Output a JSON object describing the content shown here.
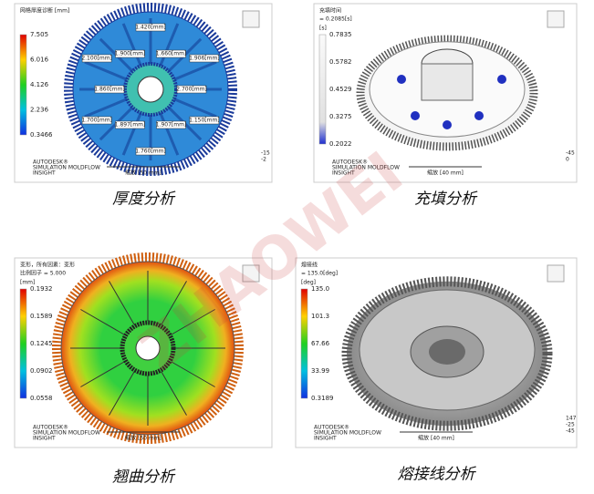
{
  "watermark": "ZHAOWEI",
  "panels": [
    {
      "title": [
        "网格厚度诊断 [mm]"
      ],
      "legend": {
        "unit": "",
        "values": [
          "7.505",
          "6.016",
          "4.126",
          "2.236",
          "0.3466"
        ]
      },
      "labels": [
        "1.420[mm]",
        "1.660[mm]",
        "1.906[mm]",
        "2.700[mm]",
        "1.150[mm]",
        "1.907[mm]",
        "1.760[mm]",
        "1.897[mm]",
        "1.700[mm]",
        "1.860[mm]",
        "2.100[mm]",
        "1.900[mm]"
      ],
      "brand": [
        "AUTODESK®",
        "SIMULATION MOLDFLOW",
        "INSIGHT"
      ],
      "scale": "缩放 [50 mm]",
      "triad": [
        "-15",
        "-2"
      ],
      "caption": "厚度分析"
    },
    {
      "title": [
        "充填时间",
        "= 0.2085[s]"
      ],
      "legend": {
        "unit": "[s]",
        "values": [
          "0.7835",
          "0.5782",
          "0.4529",
          "0.3275",
          "0.2022"
        ]
      },
      "labels": [],
      "brand": [
        "AUTODESK®",
        "SIMULATION MOLDFLOW",
        "INSIGHT"
      ],
      "scale": "缩放 [40 mm]",
      "triad": [
        "-45",
        "0"
      ],
      "caption": "充填分析"
    },
    {
      "title": [
        "变形，所有因素：变形",
        "比例因子 = 5.000"
      ],
      "legend": {
        "unit": "[mm]",
        "values": [
          "0.1932",
          "0.1589",
          "0.1245",
          "0.0902",
          "0.0558"
        ]
      },
      "labels": [],
      "brand": [
        "AUTODESK®",
        "SIMULATION MOLDFLOW",
        "INSIGHT"
      ],
      "scale": "缩放 [50 mm]",
      "triad": [],
      "caption": "翘曲分析"
    },
    {
      "title": [
        "熔接线",
        "= 135.0[deg]"
      ],
      "legend": {
        "unit": "[deg]",
        "values": [
          "135.0",
          "101.3",
          "67.66",
          "33.99",
          "0.3189"
        ]
      },
      "labels": [],
      "brand": [
        "AUTODESK®",
        "SIMULATION MOLDFLOW",
        "INSIGHT"
      ],
      "scale": "缩放 [40 mm]",
      "triad": [
        "147",
        "-25",
        "-45"
      ],
      "caption": "熔接线分析"
    }
  ]
}
